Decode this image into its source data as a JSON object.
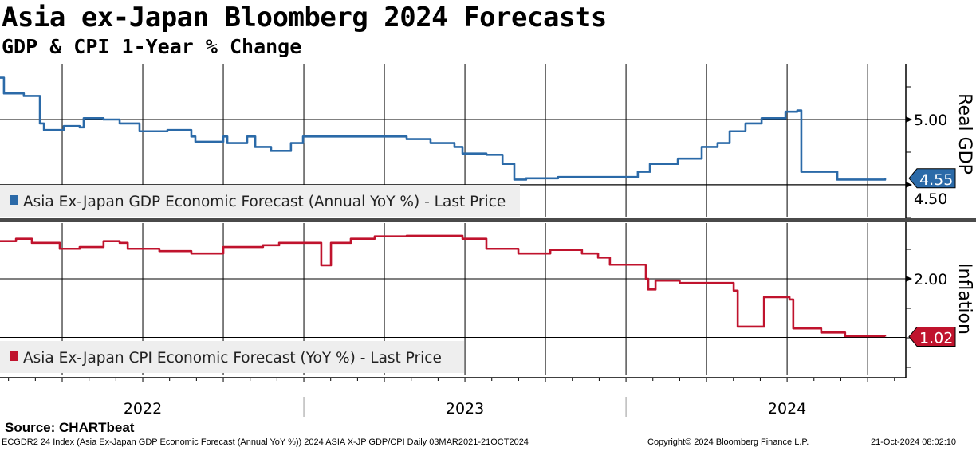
{
  "title": "Asia ex-Japan Bloomberg 2024 Forecasts",
  "subtitle": "GDP & CPI 1-Year % Change",
  "source": "Source: CHARTbeat",
  "footer": {
    "left": "ECGDR2 24 Index (Asia Ex-Japan GDP Economic Forecast (Annual YoY %)) 2024 ASIA X-JP GDP/CPI  Daily 03MAR2021-21OCT2024",
    "copyright": "Copyright© 2024 Bloomberg Finance L.P.",
    "timestamp": "21-Oct-2024 08:02:10"
  },
  "colors": {
    "gdp": "#2b6aa8",
    "cpi": "#c0132d",
    "legend_bg": "#eeeeee"
  },
  "chart_data": [
    {
      "type": "line",
      "panel": "top",
      "axis_label": "Real GDP",
      "x_unit": "months since Jan 2022",
      "ylim": [
        4.25,
        5.4
      ],
      "yticks": [
        "5.00",
        "4.50"
      ],
      "ytick_values": [
        5.0,
        4.5
      ],
      "last_value_label": "4.55",
      "legend": "Asia Ex-Japan GDP Economic Forecast (Annual YoY %) - Last Price",
      "series": {
        "name": "Asia Ex-Japan GDP Economic Forecast (Annual YoY %)",
        "x": [
          0.68,
          0.83,
          1.57,
          2.17,
          2.32,
          2.91,
          3.06,
          3.65,
          3.8,
          4.54,
          5.14,
          5.88,
          6.92,
          7.81,
          7.96,
          9.0,
          9.15,
          9.89,
          10.19,
          10.78,
          11.52,
          11.97,
          14.64,
          15.83,
          16.72,
          17.61,
          17.91,
          18.8,
          19.4,
          19.84,
          20.28,
          21.47,
          23.25,
          24.44,
          24.89,
          25.93,
          26.82,
          27.41,
          27.86,
          28.45,
          29.05,
          29.94,
          30.38,
          30.53,
          30.83,
          31.72,
          31.87,
          33.65
        ],
        "y": [
          5.32,
          5.2,
          5.18,
          4.97,
          4.92,
          4.92,
          4.95,
          4.94,
          5.01,
          5.0,
          4.97,
          4.91,
          4.92,
          4.87,
          4.83,
          4.87,
          4.82,
          4.87,
          4.79,
          4.76,
          4.82,
          4.87,
          4.87,
          4.85,
          4.82,
          4.79,
          4.74,
          4.73,
          4.66,
          4.54,
          4.55,
          4.56,
          4.56,
          4.6,
          4.66,
          4.7,
          4.79,
          4.82,
          4.91,
          4.97,
          5.01,
          5.06,
          5.07,
          4.6,
          4.6,
          4.6,
          4.54,
          4.55
        ]
      }
    },
    {
      "type": "line",
      "panel": "bottom",
      "axis_label": "Inflation",
      "x_unit": "months since Jan 2022",
      "ylim": [
        0.5,
        3.05
      ],
      "yticks": [
        "2.00"
      ],
      "ytick_values": [
        2.0
      ],
      "last_value_label": "1.02",
      "legend": "Asia Ex-Japan CPI Economic Forecast (YoY %) - Last Price",
      "series": {
        "name": "Asia Ex-Japan CPI Economic Forecast (YoY %)",
        "x": [
          0.68,
          1.28,
          1.87,
          2.47,
          2.91,
          3.65,
          4.54,
          5.14,
          5.44,
          6.62,
          7.81,
          9.0,
          10.48,
          11.08,
          12.56,
          12.65,
          12.92,
          13.01,
          13.75,
          14.64,
          15.83,
          17.91,
          18.8,
          19.99,
          21.18,
          22.36,
          22.96,
          23.4,
          24.59,
          24.74,
          24.83,
          25.04,
          25.1,
          26.0,
          28.01,
          28.16,
          29.05,
          29.14,
          30.09,
          30.23,
          31.27,
          32.16,
          33.65
        ],
        "y": [
          2.64,
          2.68,
          2.61,
          2.61,
          2.51,
          2.54,
          2.64,
          2.61,
          2.51,
          2.47,
          2.43,
          2.54,
          2.57,
          2.61,
          2.61,
          2.23,
          2.23,
          2.61,
          2.68,
          2.72,
          2.73,
          2.68,
          2.51,
          2.43,
          2.49,
          2.43,
          2.36,
          2.24,
          2.24,
          2.0,
          1.82,
          1.82,
          1.97,
          1.93,
          1.8,
          1.19,
          1.19,
          1.69,
          1.65,
          1.16,
          1.09,
          1.03,
          1.02
        ]
      }
    }
  ],
  "x_axis": {
    "labels": [
      "2022",
      "2023",
      "2024"
    ],
    "label_months": [
      6,
      18,
      30
    ],
    "separator_months": [
      12,
      24
    ]
  }
}
